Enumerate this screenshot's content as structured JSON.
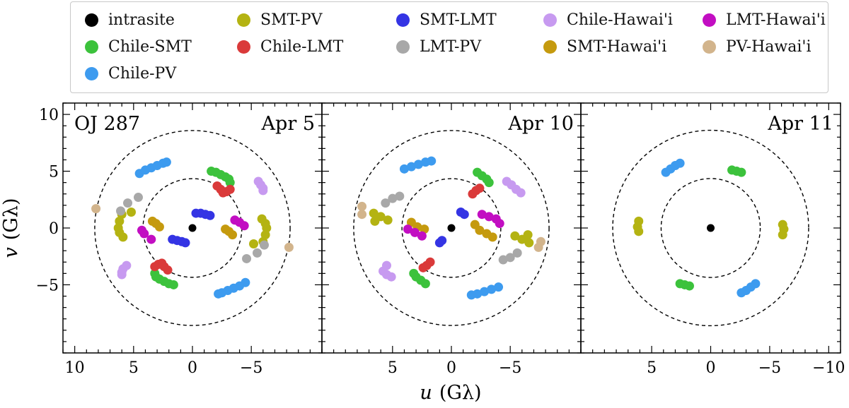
{
  "chart_data": [
    {
      "type": "scatter",
      "source": "OJ 287",
      "date": "Apr 5",
      "xlim": [
        11,
        -11
      ],
      "ylim": [
        -11,
        11
      ],
      "xticks": [
        10,
        5,
        0,
        -5
      ],
      "xtick_labels": [
        "10",
        "5",
        "0",
        "−5"
      ],
      "yticks": [
        10,
        5,
        0,
        -5
      ],
      "ytick_labels": [
        "10",
        "5",
        "0",
        "−5"
      ],
      "circles": [
        4.2,
        8.3
      ],
      "tracks": [
        {
          "baseline": "intrasite",
          "points": [
            [
              0,
              0
            ]
          ]
        },
        {
          "baseline": "Chile-SMT",
          "points": [
            [
              -1.6,
              5.0
            ],
            [
              -2.0,
              4.9
            ],
            [
              -2.4,
              4.7
            ],
            [
              -2.8,
              4.5
            ],
            [
              -3.1,
              4.3
            ],
            [
              -3.2,
              4.0
            ],
            [
              1.6,
              -5.0
            ],
            [
              2.0,
              -4.9
            ],
            [
              2.4,
              -4.7
            ],
            [
              2.8,
              -4.5
            ],
            [
              3.1,
              -4.3
            ],
            [
              3.2,
              -4.0
            ]
          ]
        },
        {
          "baseline": "Chile-PV",
          "points": [
            [
              4.5,
              4.8
            ],
            [
              4.0,
              5.1
            ],
            [
              3.5,
              5.3
            ],
            [
              3.0,
              5.5
            ],
            [
              2.5,
              5.7
            ],
            [
              2.2,
              5.8
            ],
            [
              -4.5,
              -4.8
            ],
            [
              -4.0,
              -5.1
            ],
            [
              -3.5,
              -5.3
            ],
            [
              -3.0,
              -5.5
            ],
            [
              -2.5,
              -5.7
            ],
            [
              -2.2,
              -5.8
            ]
          ]
        },
        {
          "baseline": "SMT-PV",
          "points": [
            [
              6.0,
              1.2
            ],
            [
              6.2,
              0.6
            ],
            [
              6.3,
              0.0
            ],
            [
              6.2,
              -0.4
            ],
            [
              5.9,
              -0.8
            ],
            [
              -6.0,
              -1.2
            ],
            [
              -6.2,
              -0.6
            ],
            [
              -6.3,
              0.0
            ],
            [
              -6.2,
              0.4
            ],
            [
              -5.9,
              0.8
            ],
            [
              5.2,
              1.4
            ],
            [
              -5.2,
              -1.4
            ]
          ]
        },
        {
          "baseline": "Chile-LMT",
          "points": [
            [
              -2.1,
              3.7
            ],
            [
              -2.4,
              3.4
            ],
            [
              -2.6,
              3.1
            ],
            [
              -2.9,
              3.2
            ],
            [
              -3.2,
              3.4
            ],
            [
              2.1,
              -3.7
            ],
            [
              2.4,
              -3.4
            ],
            [
              2.6,
              -3.1
            ],
            [
              2.9,
              -3.2
            ],
            [
              3.2,
              -3.4
            ]
          ]
        },
        {
          "baseline": "SMT-LMT",
          "points": [
            [
              1.7,
              -1.0
            ],
            [
              1.3,
              -1.1
            ],
            [
              0.9,
              -1.2
            ],
            [
              0.6,
              -1.3
            ],
            [
              -0.3,
              1.3
            ],
            [
              -0.7,
              1.3
            ],
            [
              -1.1,
              1.2
            ],
            [
              -1.5,
              1.1
            ]
          ]
        },
        {
          "baseline": "LMT-PV",
          "points": [
            [
              6.1,
              1.5
            ],
            [
              5.5,
              2.2
            ],
            [
              4.6,
              2.7
            ],
            [
              -6.1,
              -1.5
            ],
            [
              -5.5,
              -2.2
            ],
            [
              -4.6,
              -2.7
            ]
          ]
        },
        {
          "baseline": "Chile-Hawai'i",
          "points": [
            [
              -5.6,
              4.1
            ],
            [
              -5.8,
              3.8
            ],
            [
              -6.0,
              3.5
            ],
            [
              -6.0,
              3.3
            ],
            [
              5.6,
              -3.3
            ],
            [
              5.9,
              -3.6
            ],
            [
              6.0,
              -3.9
            ],
            [
              6.0,
              -4.1
            ]
          ]
        },
        {
          "baseline": "SMT-Hawai'i",
          "points": [
            [
              3.4,
              0.6
            ],
            [
              3.1,
              0.4
            ],
            [
              2.8,
              0.1
            ],
            [
              -2.8,
              -0.1
            ],
            [
              -3.1,
              -0.3
            ],
            [
              -3.4,
              -0.6
            ]
          ]
        },
        {
          "baseline": "LMT-Hawai'i",
          "points": [
            [
              -3.6,
              0.7
            ],
            [
              -4.0,
              0.5
            ],
            [
              -4.4,
              0.2
            ],
            [
              4.3,
              -0.2
            ],
            [
              4.1,
              -0.5
            ],
            [
              3.5,
              -1.0
            ]
          ]
        },
        {
          "baseline": "PV-Hawai'i",
          "points": [
            [
              8.2,
              1.7
            ],
            [
              -8.2,
              -1.7
            ]
          ]
        }
      ]
    },
    {
      "type": "scatter",
      "date": "Apr 10",
      "xlim": [
        11,
        -11
      ],
      "ylim": [
        -11,
        11
      ],
      "xticks": [
        5,
        0,
        -5
      ],
      "xtick_labels": [
        "5",
        "0",
        "−5"
      ],
      "yticks": [
        10,
        5,
        0,
        -5
      ],
      "circles": [
        4.2,
        8.3
      ],
      "tracks": [
        {
          "baseline": "intrasite",
          "points": [
            [
              0,
              0
            ]
          ]
        },
        {
          "baseline": "Chile-SMT",
          "points": [
            [
              -2.2,
              4.9
            ],
            [
              -2.6,
              4.6
            ],
            [
              -3.0,
              4.3
            ],
            [
              -3.2,
              4.0
            ],
            [
              2.2,
              -4.9
            ],
            [
              2.6,
              -4.6
            ],
            [
              3.0,
              -4.3
            ],
            [
              3.2,
              -4.0
            ]
          ]
        },
        {
          "baseline": "Chile-PV",
          "points": [
            [
              4.0,
              5.2
            ],
            [
              3.4,
              5.4
            ],
            [
              2.8,
              5.6
            ],
            [
              2.2,
              5.8
            ],
            [
              1.7,
              5.9
            ],
            [
              -4.0,
              -5.2
            ],
            [
              -3.4,
              -5.4
            ],
            [
              -2.8,
              -5.6
            ],
            [
              -2.2,
              -5.8
            ],
            [
              -1.7,
              -5.9
            ]
          ]
        },
        {
          "baseline": "SMT-PV",
          "points": [
            [
              6.6,
              1.3
            ],
            [
              6.0,
              1.0
            ],
            [
              5.4,
              0.7
            ],
            [
              6.5,
              0.6
            ],
            [
              -6.6,
              -1.3
            ],
            [
              -6.0,
              -1.0
            ],
            [
              -5.4,
              -0.7
            ],
            [
              -6.5,
              -0.6
            ]
          ]
        },
        {
          "baseline": "Chile-LMT",
          "points": [
            [
              -1.8,
              3.0
            ],
            [
              -2.1,
              3.3
            ],
            [
              -2.4,
              3.5
            ],
            [
              1.8,
              -3.0
            ],
            [
              2.1,
              -3.3
            ],
            [
              2.4,
              -3.5
            ]
          ]
        },
        {
          "baseline": "SMT-LMT",
          "points": [
            [
              -0.8,
              1.4
            ],
            [
              -1.1,
              1.2
            ],
            [
              0.8,
              -1.1
            ],
            [
              1.0,
              -1.3
            ]
          ]
        },
        {
          "baseline": "LMT-PV",
          "points": [
            [
              5.6,
              2.2
            ],
            [
              5.0,
              2.6
            ],
            [
              4.4,
              2.8
            ],
            [
              -5.6,
              -2.2
            ],
            [
              -5.0,
              -2.6
            ],
            [
              -4.4,
              -2.8
            ]
          ]
        },
        {
          "baseline": "Chile-Hawai'i",
          "points": [
            [
              -4.7,
              4.1
            ],
            [
              -5.1,
              3.8
            ],
            [
              -5.5,
              3.4
            ],
            [
              -5.9,
              3.1
            ],
            [
              5.5,
              -3.3
            ],
            [
              5.8,
              -3.8
            ],
            [
              5.5,
              -4.1
            ],
            [
              5.1,
              -4.3
            ]
          ]
        },
        {
          "baseline": "SMT-Hawai'i",
          "points": [
            [
              3.4,
              0.5
            ],
            [
              2.9,
              0.1
            ],
            [
              2.3,
              -0.1
            ],
            [
              -2.4,
              -0.2
            ],
            [
              -3.0,
              -0.5
            ],
            [
              -3.5,
              -0.8
            ],
            [
              -2.0,
              0.3
            ]
          ]
        },
        {
          "baseline": "LMT-Hawai'i",
          "points": [
            [
              -2.6,
              1.2
            ],
            [
              -3.2,
              1.0
            ],
            [
              -3.8,
              0.8
            ],
            [
              -4.1,
              0.4
            ],
            [
              3.7,
              -0.1
            ],
            [
              3.1,
              -0.4
            ],
            [
              2.5,
              -0.7
            ]
          ]
        },
        {
          "baseline": "PV-Hawai'i",
          "points": [
            [
              7.6,
              1.9
            ],
            [
              7.6,
              1.2
            ],
            [
              -7.6,
              -1.2
            ],
            [
              -7.4,
              -1.7
            ]
          ]
        }
      ]
    },
    {
      "type": "scatter",
      "date": "Apr 11",
      "xlim": [
        11,
        -11
      ],
      "ylim": [
        -11,
        11
      ],
      "xticks": [
        5,
        0,
        -5,
        -10
      ],
      "xtick_labels": [
        "5",
        "0",
        "−5",
        "−10"
      ],
      "yticks": [
        10,
        5,
        0,
        -5
      ],
      "circles": [
        4.2,
        8.3
      ],
      "tracks": [
        {
          "baseline": "intrasite",
          "points": [
            [
              0,
              0
            ]
          ]
        },
        {
          "baseline": "Chile-SMT",
          "points": [
            [
              -1.8,
              5.1
            ],
            [
              -2.2,
              5.0
            ],
            [
              -2.6,
              4.9
            ],
            [
              1.8,
              -5.1
            ],
            [
              2.2,
              -5.0
            ],
            [
              2.6,
              -4.9
            ]
          ]
        },
        {
          "baseline": "Chile-PV",
          "points": [
            [
              3.8,
              4.9
            ],
            [
              3.4,
              5.2
            ],
            [
              3.0,
              5.5
            ],
            [
              2.6,
              5.7
            ],
            [
              -3.8,
              -4.9
            ],
            [
              -3.4,
              -5.2
            ],
            [
              -3.0,
              -5.5
            ],
            [
              -2.6,
              -5.7
            ]
          ]
        },
        {
          "baseline": "SMT-PV",
          "points": [
            [
              6.1,
              0.6
            ],
            [
              6.2,
              0.1
            ],
            [
              6.1,
              -0.3
            ],
            [
              -6.1,
              -0.6
            ],
            [
              -6.2,
              -0.1
            ],
            [
              -6.1,
              0.3
            ]
          ]
        }
      ]
    }
  ],
  "legend": [
    {
      "label": "intrasite",
      "color": "#000000"
    },
    {
      "label": "Chile-SMT",
      "color": "#3cc23c"
    },
    {
      "label": "Chile-PV",
      "color": "#3d9bef"
    },
    {
      "label": "SMT-PV",
      "color": "#b4b312"
    },
    {
      "label": "Chile-LMT",
      "color": "#da3a3a"
    },
    {
      "label": "SMT-LMT",
      "color": "#3434e4"
    },
    {
      "label": "LMT-PV",
      "color": "#a8a8a8"
    },
    {
      "label": "Chile-Hawai'i",
      "color": "#c79af0"
    },
    {
      "label": "SMT-Hawai'i",
      "color": "#c59a0e"
    },
    {
      "label": "LMT-Hawai'i",
      "color": "#c20ec2"
    },
    {
      "label": "PV-Hawai'i",
      "color": "#d2b48c"
    }
  ],
  "axes": {
    "xlabel": "u (Gλ)",
    "ylabel": "v (Gλ)",
    "x_var": "u",
    "y_var": "v",
    "unit": "(Gλ)"
  }
}
